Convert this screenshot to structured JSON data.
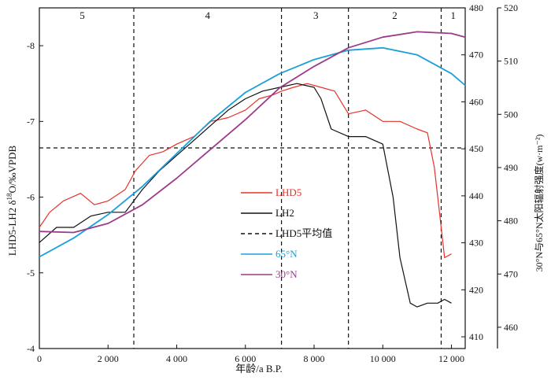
{
  "chart_data": {
    "type": "line",
    "x_axis": {
      "label": "年龄/a B.P.",
      "range": [
        0,
        12400
      ],
      "ticks": [
        0,
        2000,
        4000,
        6000,
        8000,
        10000,
        12000
      ],
      "tick_labels": [
        "0",
        "2 000",
        "4 000",
        "6 000",
        "8 000",
        "10 000",
        "12 000"
      ]
    },
    "y_left": {
      "label": "LHD5-LH2 δ18O/‰VPDB",
      "range": [
        -4,
        -8.5
      ],
      "reversed": true,
      "ticks": [
        -4,
        -5,
        -6,
        -7,
        -8
      ],
      "tick_labels": [
        "-4",
        "-5",
        "-6",
        "-7",
        "-8"
      ]
    },
    "y_right_inner": {
      "range": [
        407.5,
        480
      ],
      "ticks": [
        410,
        420,
        430,
        440,
        450,
        460,
        470,
        480
      ],
      "tick_labels": [
        "410",
        "420",
        "430",
        "440",
        "450",
        "460",
        "470",
        "480"
      ]
    },
    "y_right_outer": {
      "label": "30°N与65°N太阳辐射强度(w·m⁻²)",
      "range": [
        456,
        520
      ],
      "ticks": [
        460,
        470,
        480,
        490,
        500,
        510,
        520
      ],
      "tick_labels": [
        "460",
        "470",
        "480",
        "490",
        "500",
        "510",
        "520"
      ]
    },
    "stage_boundaries": [
      2750,
      7050,
      9000,
      11700
    ],
    "stages": [
      {
        "label": "5",
        "x": 1250
      },
      {
        "label": "4",
        "x": 4900
      },
      {
        "label": "3",
        "x": 8050
      },
      {
        "label": "2",
        "x": 10350
      },
      {
        "label": "1",
        "x": 12050
      }
    ],
    "mean_line": {
      "name": "LHD5平均值",
      "value": -6.65
    },
    "series": [
      {
        "name": "LHD5",
        "color": "#e8302a",
        "axis": "left",
        "points": [
          [
            0,
            -5.6
          ],
          [
            300,
            -5.8
          ],
          [
            700,
            -5.95
          ],
          [
            1200,
            -6.05
          ],
          [
            1600,
            -5.9
          ],
          [
            2000,
            -5.95
          ],
          [
            2500,
            -6.1
          ],
          [
            2800,
            -6.35
          ],
          [
            3200,
            -6.55
          ],
          [
            3600,
            -6.6
          ],
          [
            4000,
            -6.7
          ],
          [
            4500,
            -6.8
          ],
          [
            5000,
            -7.0
          ],
          [
            5500,
            -7.05
          ],
          [
            6000,
            -7.15
          ],
          [
            6400,
            -7.3
          ],
          [
            6800,
            -7.35
          ],
          [
            7050,
            -7.4
          ],
          [
            7400,
            -7.45
          ],
          [
            7800,
            -7.5
          ],
          [
            8200,
            -7.45
          ],
          [
            8600,
            -7.4
          ],
          [
            8800,
            -7.25
          ],
          [
            9000,
            -7.1
          ],
          [
            9500,
            -7.15
          ],
          [
            10000,
            -7.0
          ],
          [
            10500,
            -7.0
          ],
          [
            11000,
            -6.9
          ],
          [
            11300,
            -6.85
          ],
          [
            11500,
            -6.4
          ],
          [
            11650,
            -5.8
          ],
          [
            11800,
            -5.2
          ],
          [
            12000,
            -5.25
          ]
        ]
      },
      {
        "name": "LH2",
        "color": "#111111",
        "axis": "left",
        "points": [
          [
            0,
            -5.4
          ],
          [
            500,
            -5.6
          ],
          [
            1000,
            -5.6
          ],
          [
            1500,
            -5.75
          ],
          [
            2000,
            -5.8
          ],
          [
            2500,
            -5.8
          ],
          [
            3000,
            -6.1
          ],
          [
            3500,
            -6.35
          ],
          [
            4000,
            -6.55
          ],
          [
            4500,
            -6.75
          ],
          [
            5000,
            -6.95
          ],
          [
            5500,
            -7.15
          ],
          [
            6000,
            -7.3
          ],
          [
            6500,
            -7.4
          ],
          [
            7000,
            -7.45
          ],
          [
            7500,
            -7.5
          ],
          [
            8000,
            -7.45
          ],
          [
            8200,
            -7.3
          ],
          [
            8500,
            -6.9
          ],
          [
            9000,
            -6.8
          ],
          [
            9500,
            -6.8
          ],
          [
            10000,
            -6.7
          ],
          [
            10300,
            -6.0
          ],
          [
            10500,
            -5.2
          ],
          [
            10800,
            -4.6
          ],
          [
            11000,
            -4.55
          ],
          [
            11300,
            -4.6
          ],
          [
            11600,
            -4.6
          ],
          [
            11800,
            -4.65
          ],
          [
            12000,
            -4.6
          ]
        ]
      },
      {
        "name": "65°N",
        "color": "#1aa0d8",
        "axis": "right_inner",
        "points": [
          [
            0,
            427
          ],
          [
            1000,
            431
          ],
          [
            2000,
            436
          ],
          [
            3000,
            442
          ],
          [
            4000,
            449
          ],
          [
            5000,
            456
          ],
          [
            6000,
            462
          ],
          [
            7000,
            466
          ],
          [
            8000,
            469
          ],
          [
            9000,
            471
          ],
          [
            10000,
            471.5
          ],
          [
            11000,
            470
          ],
          [
            12000,
            466
          ],
          [
            12400,
            463.5
          ]
        ]
      },
      {
        "name": "30°N",
        "color": "#9b3b8a",
        "axis": "right_outer",
        "points": [
          [
            0,
            478
          ],
          [
            1000,
            477.8
          ],
          [
            2000,
            479.5
          ],
          [
            3000,
            483
          ],
          [
            4000,
            488
          ],
          [
            5000,
            493.5
          ],
          [
            6000,
            499
          ],
          [
            7000,
            505
          ],
          [
            8000,
            509
          ],
          [
            9000,
            512.5
          ],
          [
            10000,
            514.5
          ],
          [
            11000,
            515.5
          ],
          [
            12000,
            515.2
          ],
          [
            12400,
            514.5
          ]
        ]
      }
    ],
    "legend": {
      "position": "center-right",
      "entries": [
        {
          "label": "LHD5",
          "color": "#e8302a",
          "style": "solid"
        },
        {
          "label": "LH2",
          "color": "#111111",
          "style": "solid"
        },
        {
          "label": "LHD5平均值",
          "color": "#111111",
          "style": "dashed"
        },
        {
          "label": "65°N",
          "color": "#1aa0d8",
          "style": "solid"
        },
        {
          "label": "30°N",
          "color": "#9b3b8a",
          "style": "solid"
        }
      ]
    }
  }
}
